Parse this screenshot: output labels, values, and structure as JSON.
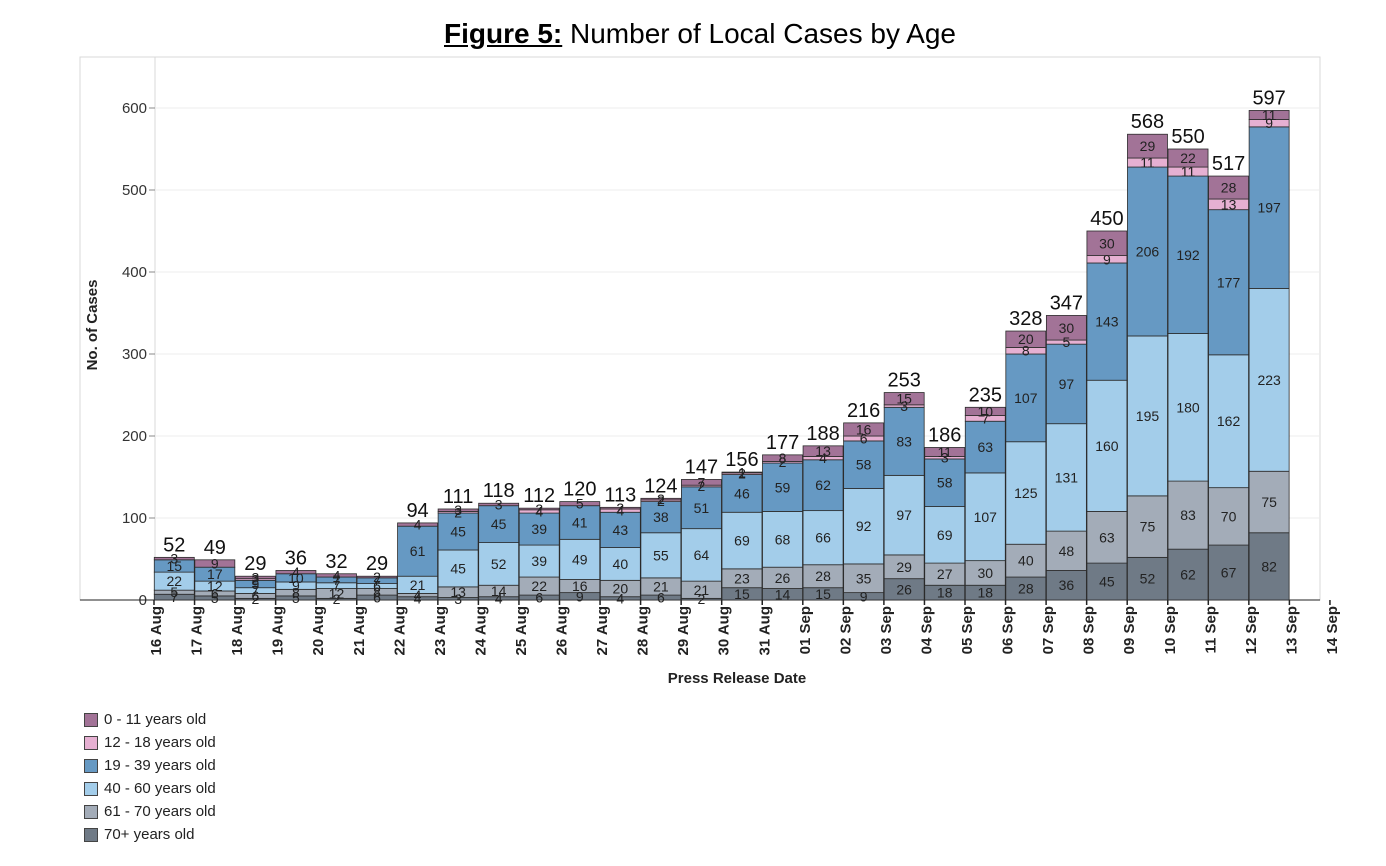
{
  "title_prefix": "Figure 5:",
  "title_text": "Number of Local Cases by Age",
  "chart_data": {
    "type": "bar",
    "stacked": true,
    "title": "Figure 5: Number of Local Cases by Age",
    "xlabel": "Press Release Date",
    "ylabel": "No. of Cases",
    "ylim": [
      0,
      650
    ],
    "yticks": [
      0,
      100,
      200,
      300,
      400,
      500,
      600
    ],
    "x_ticks": [
      "16 Aug",
      "17 Aug",
      "18 Aug",
      "19 Aug",
      "20 Aug",
      "21 Aug",
      "22 Aug",
      "23 Aug",
      "24 Aug",
      "25 Aug",
      "26 Aug",
      "27 Aug",
      "28 Aug",
      "29 Aug",
      "30 Aug",
      "31 Aug",
      "01 Sep",
      "02 Sep",
      "03 Sep",
      "04 Sep",
      "05 Sep",
      "06 Sep",
      "07 Sep",
      "08 Sep",
      "09 Sep",
      "10 Sep",
      "11 Sep",
      "12 Sep",
      "13 Sep",
      "14 Sep"
    ],
    "categories": [
      "17 Aug",
      "18 Aug",
      "19 Aug",
      "20 Aug",
      "21 Aug",
      "22 Aug",
      "23 Aug",
      "24 Aug",
      "25 Aug",
      "26 Aug",
      "27 Aug",
      "28 Aug",
      "29 Aug",
      "30 Aug",
      "31 Aug",
      "01 Sep",
      "02 Sep",
      "03 Sep",
      "04 Sep",
      "05 Sep",
      "06 Sep",
      "07 Sep",
      "08 Sep",
      "09 Sep",
      "10 Sep",
      "11 Sep",
      "12 Sep",
      "13 Sep"
    ],
    "totals": [
      52,
      49,
      29,
      36,
      32,
      29,
      94,
      111,
      118,
      112,
      120,
      113,
      124,
      147,
      156,
      177,
      188,
      216,
      253,
      186,
      235,
      328,
      347,
      450,
      568,
      550,
      517,
      597
    ],
    "series": [
      {
        "name": "70+ years old",
        "color": "#6f7a86",
        "values": [
          7,
          5,
          2,
          5,
          2,
          6,
          4,
          3,
          4,
          6,
          9,
          4,
          6,
          2,
          15,
          14,
          15,
          9,
          26,
          18,
          18,
          28,
          36,
          45,
          52,
          62,
          67,
          82
        ]
      },
      {
        "name": "61 - 70 years old",
        "color": "#a3acb8",
        "values": [
          5,
          6,
          6,
          8,
          12,
          8,
          4,
          13,
          14,
          22,
          16,
          20,
          21,
          21,
          23,
          26,
          28,
          35,
          29,
          27,
          30,
          40,
          48,
          63,
          75,
          83,
          70,
          75
        ]
      },
      {
        "name": "40 - 60 years old",
        "color": "#a3cdea",
        "values": [
          22,
          12,
          7,
          9,
          7,
          6,
          21,
          45,
          52,
          39,
          49,
          40,
          55,
          64,
          69,
          68,
          66,
          92,
          97,
          69,
          107,
          125,
          131,
          160,
          195,
          180,
          162,
          223
        ]
      },
      {
        "name": "19 - 39 years old",
        "color": "#6699c3",
        "values": [
          15,
          17,
          9,
          10,
          7,
          7,
          61,
          45,
          45,
          39,
          41,
          43,
          38,
          51,
          46,
          59,
          62,
          58,
          83,
          58,
          63,
          107,
          97,
          143,
          206,
          192,
          177,
          197
        ]
      },
      {
        "name": "12 - 18 years old",
        "color": "#e6b0d2",
        "values": [
          0,
          0,
          2,
          0,
          0,
          0,
          0,
          2,
          0,
          4,
          0,
          4,
          2,
          2,
          2,
          2,
          4,
          6,
          3,
          3,
          7,
          8,
          5,
          9,
          11,
          11,
          13,
          9
        ]
      },
      {
        "name": "0 - 11 years old",
        "color": "#a27397",
        "values": [
          3,
          9,
          3,
          4,
          4,
          2,
          4,
          3,
          3,
          2,
          5,
          2,
          2,
          7,
          1,
          8,
          13,
          16,
          15,
          11,
          10,
          20,
          30,
          30,
          29,
          22,
          28,
          11
        ]
      }
    ],
    "legend": [
      "0 - 11 years old",
      "12 - 18 years old",
      "19 - 39 years old",
      "40 - 60 years old",
      "61 - 70 years old",
      "70+ years old"
    ],
    "legend_position": "bottom-left",
    "grid": true
  }
}
